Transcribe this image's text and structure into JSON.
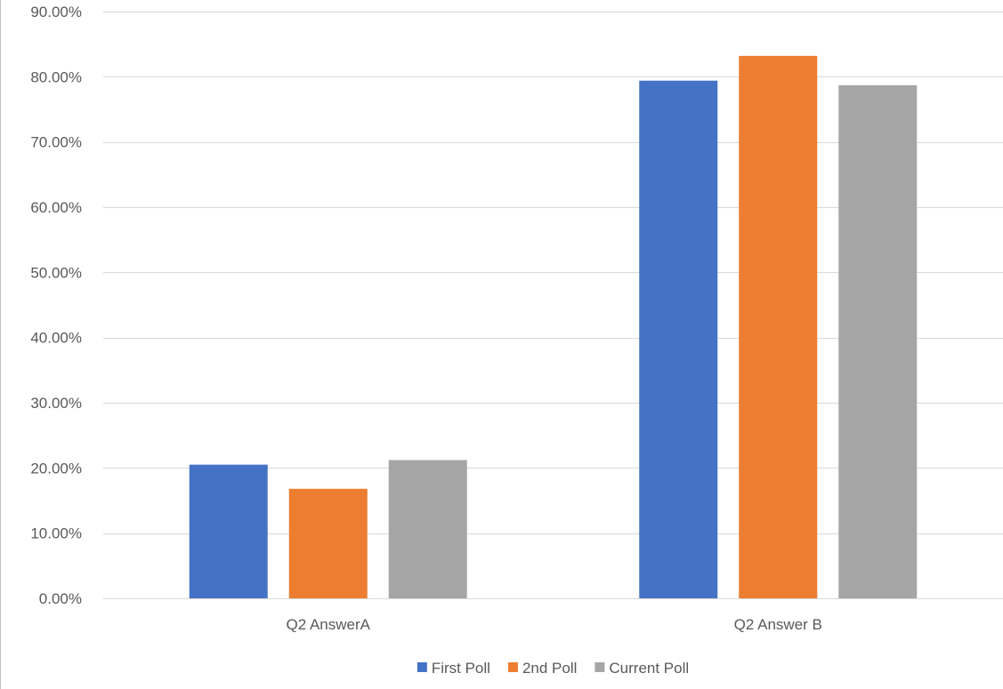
{
  "chart_data": {
    "type": "bar",
    "categories": [
      "Q2 AnswerA",
      "Q2 Answer B"
    ],
    "series": [
      {
        "name": "First Poll",
        "color": "#4472C4",
        "values": [
          20.5,
          79.4
        ]
      },
      {
        "name": "2nd Poll",
        "color": "#ED7D31",
        "values": [
          16.8,
          83.2
        ]
      },
      {
        "name": "Current Poll",
        "color": "#A5A5A5",
        "values": [
          21.2,
          78.7
        ]
      }
    ],
    "ylim": [
      0,
      90
    ],
    "yticks": [
      0,
      10,
      20,
      30,
      40,
      50,
      60,
      70,
      80,
      90
    ],
    "ytick_labels": [
      "0.00%",
      "10.00%",
      "20.00%",
      "30.00%",
      "40.00%",
      "50.00%",
      "60.00%",
      "70.00%",
      "80.00%",
      "90.00%"
    ],
    "grid": true,
    "legend_position": "bottom"
  }
}
